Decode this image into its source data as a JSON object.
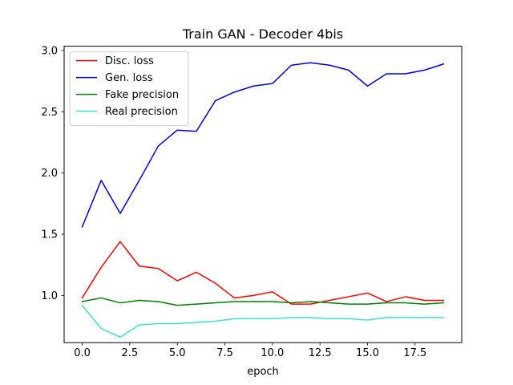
{
  "chart_data": {
    "type": "line",
    "title": "Train GAN - Decoder 4bis",
    "xlabel": "epoch",
    "ylabel": "",
    "xlim": [
      -0.95,
      19.95
    ],
    "ylim": [
      0.615,
      3.035
    ],
    "x_ticks": [
      0,
      2.5,
      5,
      7.5,
      10,
      12.5,
      15,
      17.5
    ],
    "x_tick_labels": [
      "0.0",
      "2.5",
      "5.0",
      "7.5",
      "10.0",
      "12.5",
      "15.0",
      "17.5"
    ],
    "y_ticks": [
      1.0,
      1.5,
      2.0,
      2.5,
      3.0
    ],
    "y_tick_labels": [
      "1.0",
      "1.5",
      "2.0",
      "2.5",
      "3.0"
    ],
    "grid": false,
    "legend_position": "top-left",
    "x": [
      0,
      1,
      2,
      3,
      4,
      5,
      6,
      7,
      8,
      9,
      10,
      11,
      12,
      13,
      14,
      15,
      16,
      17,
      18,
      19
    ],
    "series": [
      {
        "name": "Disc. loss",
        "color": "#ff0000",
        "values": [
          0.98,
          1.23,
          1.44,
          1.24,
          1.22,
          1.12,
          1.19,
          1.1,
          0.98,
          1.0,
          1.03,
          0.93,
          0.93,
          0.96,
          0.99,
          1.02,
          0.95,
          0.99,
          0.96,
          0.96
        ]
      },
      {
        "name": "Gen. loss",
        "color": "#0000dd",
        "values": [
          1.56,
          1.94,
          1.67,
          1.94,
          2.22,
          2.35,
          2.34,
          2.59,
          2.66,
          2.71,
          2.73,
          2.88,
          2.9,
          2.88,
          2.84,
          2.71,
          2.81,
          2.81,
          2.84,
          2.89
        ]
      },
      {
        "name": "Fake precision",
        "color": "#008000",
        "values": [
          0.95,
          0.98,
          0.94,
          0.96,
          0.95,
          0.92,
          0.93,
          0.94,
          0.95,
          0.95,
          0.95,
          0.94,
          0.95,
          0.94,
          0.93,
          0.93,
          0.94,
          0.94,
          0.93,
          0.94
        ]
      },
      {
        "name": "Real precision",
        "color": "#40e0d0",
        "values": [
          0.92,
          0.73,
          0.66,
          0.76,
          0.77,
          0.77,
          0.78,
          0.79,
          0.81,
          0.81,
          0.81,
          0.82,
          0.82,
          0.81,
          0.81,
          0.8,
          0.82,
          0.82,
          0.82,
          0.82
        ]
      }
    ]
  }
}
